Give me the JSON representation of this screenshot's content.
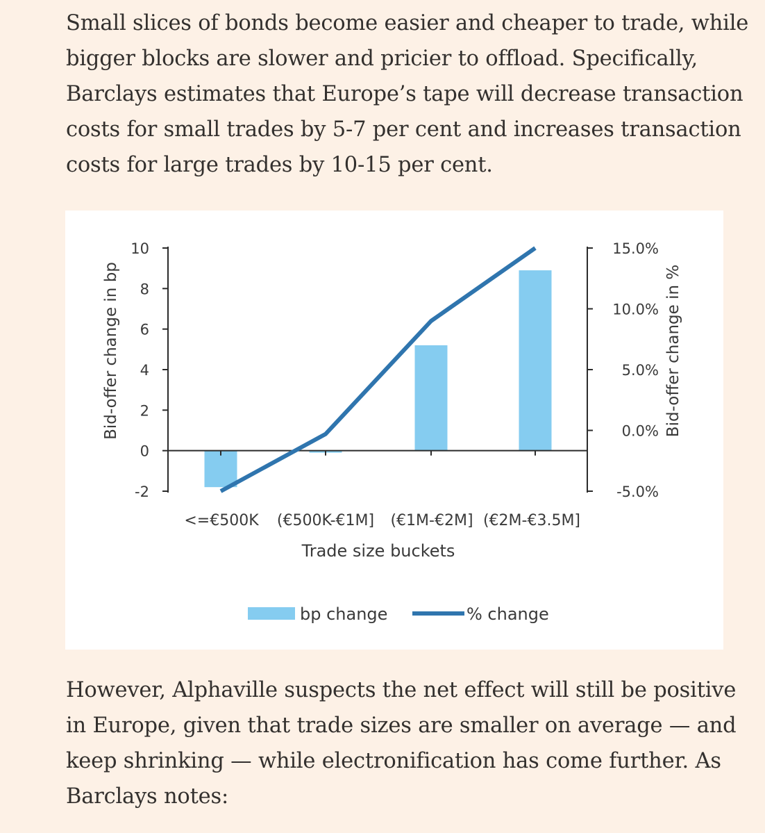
{
  "article": {
    "para1_lines": [
      "Small slices of bonds become easier and cheaper to trade, while",
      "bigger blocks are slower and pricier to offload. Specifically,",
      "Barclays estimates that Europe’s tape will decrease transaction",
      "costs for small trades by 5-7 per cent and increases transaction",
      "costs for large trades by 10-15 per cent."
    ],
    "para2_lines": [
      "However, Alphaville suspects the net effect will still be positive",
      "in Europe, given that trade sizes are smaller on average — and",
      "keep shrinking — while electronification has come further. As",
      "Barclays notes:"
    ]
  },
  "chart_data": {
    "type": "bar",
    "categories": [
      "<=€500K",
      "(€500K-€1M]",
      "(€1M-€2M]",
      "(€2M-€3.5M]"
    ],
    "series": [
      {
        "name": "bp change",
        "kind": "bar",
        "axis": "left",
        "values": [
          -1.8,
          -0.1,
          5.2,
          8.9
        ],
        "color": "#85ccf0"
      },
      {
        "name": "% change",
        "kind": "line",
        "axis": "right",
        "values": [
          -5.0,
          -0.3,
          9.0,
          15.0
        ],
        "color": "#2f75ae"
      }
    ],
    "xlabel": "Trade size buckets",
    "ylabel_left": "Bid-offer change in bp",
    "ylabel_right": "Bid-offer change in %",
    "ylim_left": [
      -2,
      10
    ],
    "ylim_right": [
      -5,
      15
    ],
    "yticks_left": [
      "-2",
      "0",
      "2",
      "4",
      "6",
      "8",
      "10"
    ],
    "yticks_right": [
      "-5.0%",
      "0.0%",
      "5.0%",
      "10.0%",
      "15.0%"
    ],
    "legend_position": "bottom",
    "grid": false
  }
}
